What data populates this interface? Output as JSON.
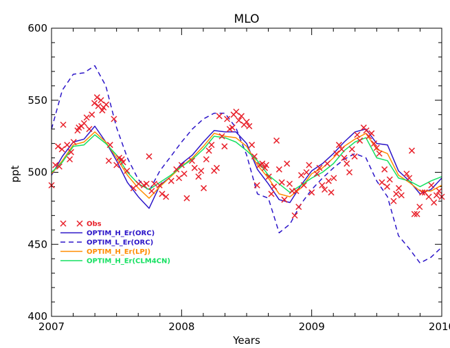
{
  "chart_data": {
    "type": "line",
    "title": "MLO",
    "xlabel": "Years",
    "ylabel": "ppt",
    "xlim": [
      2007,
      2010
    ],
    "ylim": [
      400,
      600
    ],
    "x_ticks": [
      2007,
      2008,
      2009,
      2010
    ],
    "x_tick_labels": [
      "2007",
      "2008",
      "2009",
      "2010"
    ],
    "y_ticks": [
      400,
      450,
      500,
      550,
      600
    ],
    "y_tick_labels": [
      "400",
      "450",
      "500",
      "550",
      "600"
    ],
    "legend_position": "bottom-left",
    "series": [
      {
        "name": "Obs",
        "style": "markers-x",
        "color": "#e8202a",
        "points": [
          [
            2007.0,
            491
          ],
          [
            2007.03,
            505
          ],
          [
            2007.05,
            518
          ],
          [
            2007.06,
            504
          ],
          [
            2007.08,
            516
          ],
          [
            2007.09,
            533
          ],
          [
            2007.12,
            519
          ],
          [
            2007.14,
            509
          ],
          [
            2007.15,
            514
          ],
          [
            2007.17,
            521
          ],
          [
            2007.2,
            529
          ],
          [
            2007.21,
            531
          ],
          [
            2007.23,
            532
          ],
          [
            2007.25,
            534
          ],
          [
            2007.27,
            538
          ],
          [
            2007.29,
            530
          ],
          [
            2007.31,
            540
          ],
          [
            2007.33,
            548
          ],
          [
            2007.35,
            552
          ],
          [
            2007.36,
            546
          ],
          [
            2007.38,
            550
          ],
          [
            2007.39,
            543
          ],
          [
            2007.4,
            545
          ],
          [
            2007.42,
            547
          ],
          [
            2007.44,
            508
          ],
          [
            2007.45,
            519
          ],
          [
            2007.48,
            537
          ],
          [
            2007.5,
            505
          ],
          [
            2007.52,
            510
          ],
          [
            2007.54,
            509
          ],
          [
            2007.55,
            507
          ],
          [
            2007.58,
            501
          ],
          [
            2007.63,
            489
          ],
          [
            2007.67,
            492
          ],
          [
            2007.71,
            491
          ],
          [
            2007.73,
            492
          ],
          [
            2007.75,
            511
          ],
          [
            2007.77,
            487
          ],
          [
            2007.79,
            492
          ],
          [
            2007.83,
            491
          ],
          [
            2007.85,
            485
          ],
          [
            2007.88,
            483
          ],
          [
            2007.92,
            494
          ],
          [
            2007.96,
            502
          ],
          [
            2007.98,
            496
          ],
          [
            2008.0,
            505
          ],
          [
            2008.02,
            499
          ],
          [
            2008.04,
            482
          ],
          [
            2008.08,
            508
          ],
          [
            2008.1,
            503
          ],
          [
            2008.13,
            497
          ],
          [
            2008.15,
            501
          ],
          [
            2008.17,
            489
          ],
          [
            2008.19,
            509
          ],
          [
            2008.21,
            515
          ],
          [
            2008.23,
            519
          ],
          [
            2008.25,
            501
          ],
          [
            2008.27,
            503
          ],
          [
            2008.29,
            539
          ],
          [
            2008.31,
            525
          ],
          [
            2008.33,
            518
          ],
          [
            2008.35,
            537
          ],
          [
            2008.37,
            530
          ],
          [
            2008.39,
            531
          ],
          [
            2008.4,
            540
          ],
          [
            2008.42,
            542
          ],
          [
            2008.44,
            536
          ],
          [
            2008.46,
            539
          ],
          [
            2008.48,
            533
          ],
          [
            2008.5,
            535
          ],
          [
            2008.52,
            532
          ],
          [
            2008.54,
            519
          ],
          [
            2008.56,
            511
          ],
          [
            2008.58,
            491
          ],
          [
            2008.6,
            505
          ],
          [
            2008.62,
            506
          ],
          [
            2008.64,
            503
          ],
          [
            2008.65,
            505
          ],
          [
            2008.67,
            497
          ],
          [
            2008.69,
            485
          ],
          [
            2008.71,
            490
          ],
          [
            2008.73,
            522
          ],
          [
            2008.75,
            502
          ],
          [
            2008.77,
            493
          ],
          [
            2008.79,
            481
          ],
          [
            2008.81,
            506
          ],
          [
            2008.83,
            492
          ],
          [
            2008.85,
            487
          ],
          [
            2008.87,
            470
          ],
          [
            2008.88,
            487
          ],
          [
            2008.9,
            476
          ],
          [
            2008.92,
            498
          ],
          [
            2008.94,
            491
          ],
          [
            2008.96,
            500
          ],
          [
            2008.98,
            505
          ],
          [
            2009.0,
            486
          ],
          [
            2009.04,
            499
          ],
          [
            2009.06,
            503
          ],
          [
            2009.08,
            491
          ],
          [
            2009.1,
            488
          ],
          [
            2009.12,
            506
          ],
          [
            2009.13,
            494
          ],
          [
            2009.15,
            486
          ],
          [
            2009.17,
            496
          ],
          [
            2009.19,
            513
          ],
          [
            2009.21,
            519
          ],
          [
            2009.23,
            516
          ],
          [
            2009.25,
            510
          ],
          [
            2009.27,
            506
          ],
          [
            2009.29,
            500
          ],
          [
            2009.31,
            516
          ],
          [
            2009.33,
            511
          ],
          [
            2009.35,
            526
          ],
          [
            2009.37,
            522
          ],
          [
            2009.4,
            531
          ],
          [
            2009.42,
            529
          ],
          [
            2009.44,
            525
          ],
          [
            2009.46,
            527
          ],
          [
            2009.48,
            520
          ],
          [
            2009.5,
            517
          ],
          [
            2009.52,
            513
          ],
          [
            2009.54,
            493
          ],
          [
            2009.56,
            502
          ],
          [
            2009.58,
            490
          ],
          [
            2009.6,
            495
          ],
          [
            2009.63,
            480
          ],
          [
            2009.65,
            485
          ],
          [
            2009.67,
            489
          ],
          [
            2009.69,
            484
          ],
          [
            2009.73,
            499
          ],
          [
            2009.75,
            496
          ],
          [
            2009.77,
            515
          ],
          [
            2009.79,
            471
          ],
          [
            2009.81,
            471
          ],
          [
            2009.83,
            476
          ],
          [
            2009.85,
            486
          ],
          [
            2009.87,
            486
          ],
          [
            2009.9,
            483
          ],
          [
            2009.92,
            491
          ],
          [
            2009.94,
            479
          ],
          [
            2009.96,
            484
          ],
          [
            2009.98,
            487
          ],
          [
            2010.0,
            483
          ]
        ]
      },
      {
        "name": "OPTIM_H_Er(ORC)",
        "style": "solid",
        "color": "#2b14c8",
        "x": [
          2007.0,
          2007.083,
          2007.167,
          2007.25,
          2007.333,
          2007.417,
          2007.5,
          2007.583,
          2007.667,
          2007.75,
          2007.833,
          2007.917,
          2008.0,
          2008.083,
          2008.167,
          2008.25,
          2008.333,
          2008.417,
          2008.5,
          2008.583,
          2008.667,
          2008.75,
          2008.833,
          2008.917,
          2009.0,
          2009.083,
          2009.167,
          2009.25,
          2009.333,
          2009.417,
          2009.5,
          2009.583,
          2009.667,
          2009.75,
          2009.833,
          2009.917,
          2010.0
        ],
        "values": [
          498,
          511,
          521,
          523,
          532,
          521,
          508,
          493,
          483,
          475,
          491,
          497,
          506,
          512,
          521,
          529,
          528,
          528,
          520,
          502,
          492,
          481,
          479,
          491,
          501,
          506,
          513,
          521,
          528,
          530,
          520,
          519,
          501,
          494,
          485,
          488,
          496
        ]
      },
      {
        "name": "OPTIM_L_Er(ORC)",
        "style": "dashed",
        "color": "#2b14c8",
        "x": [
          2007.0,
          2007.083,
          2007.167,
          2007.25,
          2007.333,
          2007.417,
          2007.5,
          2007.583,
          2007.667,
          2007.75,
          2007.833,
          2007.917,
          2008.0,
          2008.083,
          2008.167,
          2008.25,
          2008.333,
          2008.417,
          2008.5,
          2008.583,
          2008.667,
          2008.75,
          2008.833,
          2008.917,
          2009.0,
          2009.083,
          2009.167,
          2009.25,
          2009.333,
          2009.417,
          2009.5,
          2009.583,
          2009.667,
          2009.75,
          2009.833,
          2009.917,
          2010.0
        ],
        "values": [
          530,
          557,
          568,
          569,
          574,
          560,
          531,
          510,
          495,
          487,
          501,
          511,
          521,
          530,
          537,
          541,
          541,
          531,
          512,
          485,
          482,
          458,
          464,
          478,
          488,
          496,
          503,
          509,
          513,
          510,
          494,
          483,
          456,
          447,
          437,
          441,
          448
        ]
      },
      {
        "name": "OPTIM_H_Er(LPJ)",
        "style": "solid",
        "color": "#ff8c00",
        "x": [
          2007.0,
          2007.083,
          2007.167,
          2007.25,
          2007.333,
          2007.417,
          2007.5,
          2007.583,
          2007.667,
          2007.75,
          2007.833,
          2007.917,
          2008.0,
          2008.083,
          2008.167,
          2008.25,
          2008.333,
          2008.417,
          2008.5,
          2008.583,
          2008.667,
          2008.75,
          2008.833,
          2008.917,
          2009.0,
          2009.083,
          2009.167,
          2009.25,
          2009.333,
          2009.417,
          2009.5,
          2009.583,
          2009.667,
          2009.75,
          2009.833,
          2009.917,
          2010.0
        ],
        "values": [
          499,
          508,
          519,
          521,
          528,
          521,
          510,
          498,
          489,
          482,
          490,
          497,
          504,
          510,
          518,
          527,
          525,
          524,
          518,
          505,
          496,
          485,
          483,
          489,
          499,
          503,
          510,
          518,
          523,
          527,
          516,
          513,
          498,
          493,
          487,
          487,
          491
        ]
      },
      {
        "name": "OPTIM_H_Er(CLM4CN)",
        "style": "solid",
        "color": "#14e060",
        "x": [
          2007.0,
          2007.083,
          2007.167,
          2007.25,
          2007.333,
          2007.417,
          2007.5,
          2007.583,
          2007.667,
          2007.75,
          2007.833,
          2007.917,
          2008.0,
          2008.083,
          2008.167,
          2008.25,
          2008.333,
          2008.417,
          2008.5,
          2008.583,
          2008.667,
          2008.75,
          2008.833,
          2008.917,
          2009.0,
          2009.083,
          2009.167,
          2009.25,
          2009.333,
          2009.417,
          2009.5,
          2009.583,
          2009.667,
          2009.75,
          2009.833,
          2009.917,
          2010.0
        ],
        "values": [
          500,
          507,
          518,
          519,
          526,
          520,
          512,
          500,
          492,
          488,
          493,
          498,
          504,
          509,
          516,
          525,
          524,
          521,
          515,
          508,
          498,
          492,
          486,
          491,
          496,
          500,
          506,
          515,
          521,
          524,
          510,
          508,
          496,
          494,
          490,
          494,
          497
        ]
      }
    ]
  }
}
